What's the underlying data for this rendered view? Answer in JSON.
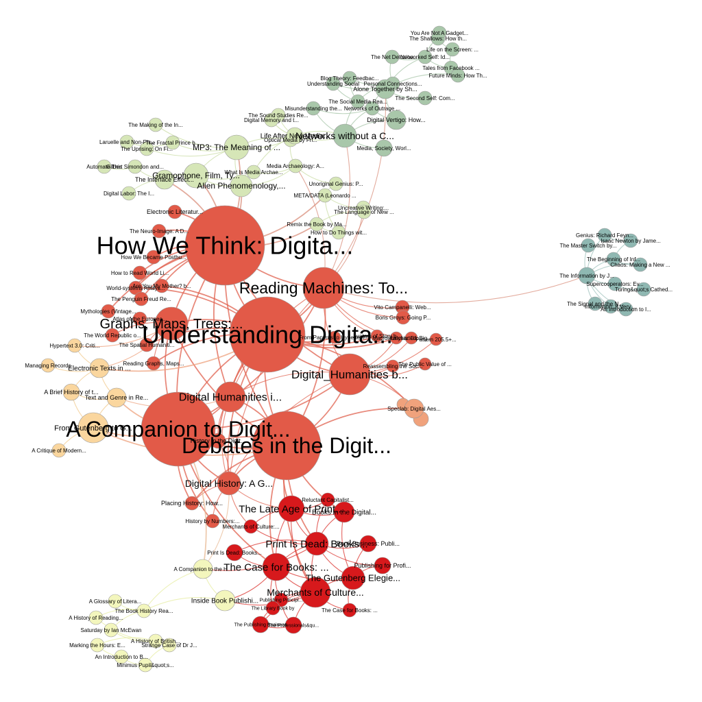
{
  "palette": {
    "red": "#e25a48",
    "crimson": "#d7191c",
    "sage": "#a9c7aa",
    "teal": "#8fb8b2",
    "lightgreen": "#d6e6b7",
    "peach": "#fad69e",
    "cream": "#f3f6bd",
    "salmon": "#f0a27c"
  },
  "network": {
    "nodes": [
      {
        "id": "n1",
        "label": "How We Think: Digita...",
        "size": "huge",
        "group": "red"
      },
      {
        "id": "n2",
        "label": "Understanding Digita...",
        "size": "huge",
        "group": "red"
      },
      {
        "id": "n3",
        "label": "A Companion to Digit...",
        "size": "huge",
        "group": "red"
      },
      {
        "id": "n4",
        "label": "Debates in the Digit...",
        "size": "huge",
        "group": "red"
      },
      {
        "id": "n5",
        "label": "Reading Machines: To...",
        "size": "large",
        "group": "red"
      },
      {
        "id": "n6",
        "label": "Digital_Humanities b...",
        "size": "large",
        "group": "red"
      },
      {
        "id": "n7",
        "label": "Graphs, Maps, Trees:...",
        "size": "large",
        "group": "red"
      },
      {
        "id": "n8",
        "label": "Digital Humanities i...",
        "size": "medium",
        "group": "red"
      },
      {
        "id": "n9",
        "label": "Digital History: A G...",
        "size": "medium",
        "group": "red"
      },
      {
        "id": "n10",
        "label": "History in the Digit...",
        "size": "small",
        "group": "red"
      },
      {
        "id": "n11",
        "label": "Placing History: How...",
        "size": "small",
        "group": "red"
      },
      {
        "id": "n12",
        "label": "History by Numbers:...",
        "size": "small",
        "group": "red"
      },
      {
        "id": "n13",
        "label": "Electronic Literatur...",
        "size": "small",
        "group": "red"
      },
      {
        "id": "n14",
        "label": "The Neuro-Image: A D...",
        "size": "small",
        "group": "red"
      },
      {
        "id": "n15",
        "label": "How We Became Posthu...",
        "size": "small",
        "group": "red"
      },
      {
        "id": "n16",
        "label": "How to Read World Li...",
        "size": "small",
        "group": "red"
      },
      {
        "id": "n17",
        "label": "World-systems Analys...",
        "size": "small",
        "group": "red"
      },
      {
        "id": "n18",
        "label": "Are You My Mother? b...",
        "size": "small",
        "group": "red"
      },
      {
        "id": "n19",
        "label": "The Penguin Freud Re...",
        "size": "small",
        "group": "red"
      },
      {
        "id": "n20",
        "label": "Mythologies (Vintage...",
        "size": "small",
        "group": "red"
      },
      {
        "id": "n21",
        "label": "Atlas of the Europea...",
        "size": "small",
        "group": "red"
      },
      {
        "id": "n22",
        "label": "The World Republic o...",
        "size": "small",
        "group": "red"
      },
      {
        "id": "n23",
        "label": "The Spatial Humaniti...",
        "size": "small",
        "group": "red"
      },
      {
        "id": "n24",
        "label": "Reading Graphs, Maps...",
        "size": "small",
        "group": "red"
      },
      {
        "id": "n25",
        "label": "Vito Campanelli: Web...",
        "size": "small",
        "group": "red"
      },
      {
        "id": "n26",
        "label": "Boris Groys: Going P...",
        "size": "small",
        "group": "red"
      },
      {
        "id": "n27",
        "label": "From Papyrus to Hypertext:...",
        "size": "small",
        "group": "red"
      },
      {
        "id": "n28",
        "label": "Avatars of Story b...",
        "size": "small",
        "group": "red"
      },
      {
        "id": "n29",
        "label": "Macroanalysis: Di...",
        "size": "small",
        "group": "red"
      },
      {
        "id": "n30",
        "label": "Uncharted: Big...",
        "size": "small",
        "group": "red"
      },
      {
        "id": "n31",
        "label": "Pattern 205.5+...",
        "size": "small",
        "group": "red"
      },
      {
        "id": "n32",
        "label": "Reassembling the Soc...",
        "size": "small",
        "group": "red"
      },
      {
        "id": "n33",
        "label": "The Public Value of ...",
        "size": "small",
        "group": "red"
      },
      {
        "id": "n34",
        "label": "The Late Age of Print...",
        "size": "medium",
        "group": "crimson"
      },
      {
        "id": "n35",
        "label": "Reluctant Capitalist...",
        "size": "small",
        "group": "crimson"
      },
      {
        "id": "n36",
        "label": "Books in the Digital...",
        "size": "small",
        "group": "crimson"
      },
      {
        "id": "n37",
        "label": "Merchants of Culture:...",
        "size": "small",
        "group": "crimson"
      },
      {
        "id": "n38",
        "label": "Print Is Dead: Books...",
        "size": "medium",
        "group": "crimson"
      },
      {
        "id": "n39",
        "label": "Print Is Dead: Books...",
        "size": "small",
        "group": "crimson"
      },
      {
        "id": "n40",
        "label": "Book Business: Publi...",
        "size": "small",
        "group": "crimson"
      },
      {
        "id": "n41",
        "label": "The Case for Books: ...",
        "size": "medium",
        "group": "crimson"
      },
      {
        "id": "n42",
        "label": "Publishing for Profi...",
        "size": "small",
        "group": "crimson"
      },
      {
        "id": "n43",
        "label": "The Gutenberg Elegie...",
        "size": "medium",
        "group": "crimson"
      },
      {
        "id": "n44",
        "label": "Merchants of Culture...",
        "size": "medium",
        "group": "crimson"
      },
      {
        "id": "n45",
        "label": "Publishing Principl...",
        "size": "small",
        "group": "crimson"
      },
      {
        "id": "n46",
        "label": "The Library Book by",
        "size": "small",
        "group": "crimson"
      },
      {
        "id": "n47",
        "label": "The Case for Books: ...",
        "size": "small",
        "group": "crimson"
      },
      {
        "id": "n48",
        "label": "The Publishing Business",
        "size": "small",
        "group": "crimson"
      },
      {
        "id": "n49",
        "label": "The Professionals&qu...",
        "size": "small",
        "group": "crimson"
      },
      {
        "id": "n50",
        "label": "You Are Not A Gadget...",
        "size": "small",
        "group": "sage"
      },
      {
        "id": "n51",
        "label": "The Shallows: How th...",
        "size": "small",
        "group": "sage"
      },
      {
        "id": "n52",
        "label": "Life on the Screen: ...",
        "size": "small",
        "group": "sage"
      },
      {
        "id": "n53",
        "label": "The Net Delusion",
        "size": "small",
        "group": "sage"
      },
      {
        "id": "n54",
        "label": "Networked Self: Id...",
        "size": "small",
        "group": "sage"
      },
      {
        "id": "n55",
        "label": "Tales from Facebook ...",
        "size": "small",
        "group": "sage"
      },
      {
        "id": "n56",
        "label": "Future Minds: How Th...",
        "size": "small",
        "group": "sage"
      },
      {
        "id": "n57",
        "label": "Blog Theory: Feedbac...",
        "size": "small",
        "group": "sage"
      },
      {
        "id": "n58",
        "label": "Understanding Social",
        "size": "small",
        "group": "sage"
      },
      {
        "id": "n59",
        "label": "Personal Connections...",
        "size": "small",
        "group": "sage"
      },
      {
        "id": "n60",
        "label": "Alone Together by Sh...",
        "size": "small",
        "group": "sage"
      },
      {
        "id": "n61",
        "label": "The Second Self: Com...",
        "size": "small",
        "group": "sage"
      },
      {
        "id": "n62",
        "label": "The Social Media Rea...",
        "size": "small",
        "group": "sage"
      },
      {
        "id": "n63",
        "label": "Misunderstanding the...",
        "size": "small",
        "group": "sage"
      },
      {
        "id": "n64",
        "label": "Networks of Outrage ...",
        "size": "small",
        "group": "sage"
      },
      {
        "id": "n65",
        "label": "Digital Vertigo: How...",
        "size": "small",
        "group": "sage"
      },
      {
        "id": "n66",
        "label": "Networks without a C...",
        "size": "medium",
        "group": "sage"
      },
      {
        "id": "n67",
        "label": "Media, Society, Worl...",
        "size": "small",
        "group": "sage"
      },
      {
        "id": "n68",
        "label": "The Sound Studies Re...",
        "size": "small",
        "group": "lightgreen"
      },
      {
        "id": "n69",
        "label": "Digital Memory and t...",
        "size": "small",
        "group": "lightgreen"
      },
      {
        "id": "n70",
        "label": "Life After New Media...",
        "size": "small",
        "group": "lightgreen"
      },
      {
        "id": "n71",
        "label": "Optical Media by Fri...",
        "size": "small",
        "group": "lightgreen"
      },
      {
        "id": "n72",
        "label": "The Making of the In...",
        "size": "small",
        "group": "lightgreen"
      },
      {
        "id": "n73",
        "label": "Laruelle and Non-Ph...",
        "size": "small",
        "group": "lightgreen"
      },
      {
        "id": "n74",
        "label": "The Fractal Prince b...",
        "size": "small",
        "group": "lightgreen"
      },
      {
        "id": "n75",
        "label": "The Uprising: On Fi...",
        "size": "small",
        "group": "lightgreen"
      },
      {
        "id": "n76",
        "label": "MP3: The Meaning of ...",
        "size": "medium",
        "group": "lightgreen"
      },
      {
        "id": "n77",
        "label": "Automate This",
        "size": "small",
        "group": "lightgreen"
      },
      {
        "id": "n78",
        "label": "Gilbert Simondon and...",
        "size": "small",
        "group": "lightgreen"
      },
      {
        "id": "n79",
        "label": "Gramophone, Film, Ty...",
        "size": "medium",
        "group": "lightgreen"
      },
      {
        "id": "n80",
        "label": "What Is Media Archae...",
        "size": "small",
        "group": "lightgreen"
      },
      {
        "id": "n81",
        "label": "The Interface Effect...",
        "size": "small",
        "group": "lightgreen"
      },
      {
        "id": "n82",
        "label": "Alien Phenomenology,...",
        "size": "medium",
        "group": "lightgreen"
      },
      {
        "id": "n83",
        "label": "Media Archaeology: A...",
        "size": "small",
        "group": "lightgreen"
      },
      {
        "id": "n84",
        "label": "Digital Labor: The I...",
        "size": "small",
        "group": "lightgreen"
      },
      {
        "id": "n85",
        "label": "Unoriginal Genius: P...",
        "size": "small",
        "group": "lightgreen"
      },
      {
        "id": "n86",
        "label": "META/DATA (Leonardo ...",
        "size": "small",
        "group": "lightgreen"
      },
      {
        "id": "n87",
        "label": "Uncreative Writing:...",
        "size": "small",
        "group": "lightgreen"
      },
      {
        "id": "n88",
        "label": "The Language of New ...",
        "size": "small",
        "group": "lightgreen"
      },
      {
        "id": "n89",
        "label": "Remix the Book by Ma...",
        "size": "small",
        "group": "lightgreen"
      },
      {
        "id": "n90",
        "label": "How to Do Things wit...",
        "size": "small",
        "group": "lightgreen"
      },
      {
        "id": "n91",
        "label": "Genius: Richard Feyn...",
        "size": "small",
        "group": "teal"
      },
      {
        "id": "n92",
        "label": "Isaac Newton by Jame...",
        "size": "small",
        "group": "teal"
      },
      {
        "id": "n93",
        "label": "The Master Switch by...",
        "size": "small",
        "group": "teal"
      },
      {
        "id": "n94",
        "label": "The Beginning of Inf...",
        "size": "small",
        "group": "teal"
      },
      {
        "id": "n95",
        "label": "Chaos: Making a New ...",
        "size": "small",
        "group": "teal"
      },
      {
        "id": "n96",
        "label": "The Information by J...",
        "size": "small",
        "group": "teal"
      },
      {
        "id": "n97",
        "label": "Supercooperators: Ev...",
        "size": "small",
        "group": "teal"
      },
      {
        "id": "n98",
        "label": "Turing&quot;s Cathed...",
        "size": "small",
        "group": "teal"
      },
      {
        "id": "n99",
        "label": "The Signal and the N...",
        "size": "small",
        "group": "teal"
      },
      {
        "id": "n100",
        "label": "Information: A Very ...",
        "size": "small",
        "group": "teal"
      },
      {
        "id": "n101",
        "label": "An Introduction to I...",
        "size": "small",
        "group": "teal"
      },
      {
        "id": "n102",
        "label": "Hypertext 3.0: Criti...",
        "size": "small",
        "group": "peach"
      },
      {
        "id": "n103",
        "label": "Managing Records",
        "size": "small",
        "group": "peach"
      },
      {
        "id": "n104",
        "label": "Electronic Texts in ...",
        "size": "small",
        "group": "peach"
      },
      {
        "id": "n105",
        "label": "A Brief History of t...",
        "size": "small",
        "group": "peach"
      },
      {
        "id": "n106",
        "label": "Text and Genre in Re...",
        "size": "small",
        "group": "peach"
      },
      {
        "id": "n107",
        "label": "From Gutenberg to G...",
        "size": "small",
        "group": "peach"
      },
      {
        "id": "n108",
        "label": "A Critique of Modern...",
        "size": "small",
        "group": "peach"
      },
      {
        "id": "n109",
        "label": "Speclab: Digital Aes...",
        "size": "small",
        "group": "salmon"
      },
      {
        "id": "n110",
        "label": "A Companion to the H...",
        "size": "small",
        "group": "cream"
      },
      {
        "id": "n111",
        "label": "Inside Book Publishi...",
        "size": "small",
        "group": "cream"
      },
      {
        "id": "n112",
        "label": "A Glossary of Litera...",
        "size": "small",
        "group": "cream"
      },
      {
        "id": "n113",
        "label": "The Book History Rea...",
        "size": "small",
        "group": "cream"
      },
      {
        "id": "n114",
        "label": "A History of Reading...",
        "size": "small",
        "group": "cream"
      },
      {
        "id": "n115",
        "label": "Saturday by Ian McEwan",
        "size": "small",
        "group": "cream"
      },
      {
        "id": "n116",
        "label": "A History of British...",
        "size": "small",
        "group": "cream"
      },
      {
        "id": "n117",
        "label": "Marking the Hours: E...",
        "size": "small",
        "group": "cream"
      },
      {
        "id": "n118",
        "label": "Strange Case of Dr J...",
        "size": "small",
        "group": "cream"
      },
      {
        "id": "n119",
        "label": "An Introduction to B...",
        "size": "small",
        "group": "cream"
      },
      {
        "id": "n120",
        "label": "Minimus Pupil&quot;s...",
        "size": "small",
        "group": "cream"
      }
    ]
  }
}
